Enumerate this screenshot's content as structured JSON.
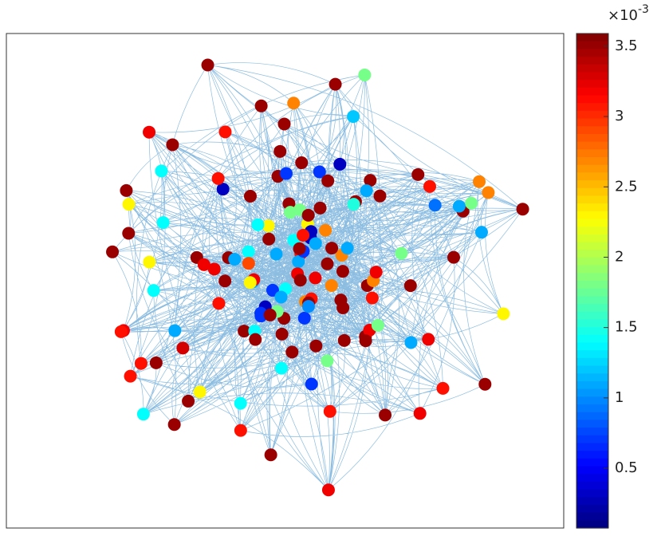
{
  "chart_data": {
    "type": "network",
    "values": [
      3.5,
      3.2,
      1.1,
      3.5,
      0.7,
      3.5,
      2.7,
      3.1,
      1.4,
      3.5,
      1.8,
      3.5,
      3.1,
      0.3,
      3.5,
      2.3,
      3.5,
      1.1,
      3.2,
      3.5,
      1.4,
      3.5,
      2.7,
      0.7,
      3.5,
      3.1,
      1.8,
      3.5,
      3.5,
      1.1,
      3.2,
      2.3,
      3.5,
      1.4,
      3.5,
      0.3,
      3.1,
      3.5,
      2.7,
      1.1,
      3.5,
      3.5,
      1.8,
      3.2,
      0.7,
      3.5,
      1.4,
      3.1,
      3.5,
      2.3,
      3.5,
      1.1,
      3.5,
      3.2,
      2.7,
      0.7,
      3.5,
      1.4,
      3.5,
      3.1,
      1.8,
      3.5,
      0.3,
      3.5,
      1.1,
      3.2,
      3.5,
      2.3,
      3.5,
      1.4,
      3.1,
      3.5,
      2.7,
      0.7,
      3.5,
      1.1,
      3.5,
      3.2,
      1.8,
      3.5,
      1.4,
      3.1,
      3.5,
      2.3,
      0.3,
      3.5,
      1.1,
      3.5,
      3.2,
      2.7,
      3.5,
      0.7,
      3.5,
      1.4,
      3.1,
      1.8,
      3.5,
      1.1,
      3.5,
      3.2,
      2.3,
      3.5,
      1.4,
      3.5,
      0.7,
      3.1,
      3.5,
      2.7,
      1.1,
      3.5,
      3.2,
      1.8,
      3.5,
      0.3,
      3.5,
      1.4,
      3.1,
      3.5,
      1.1,
      2.3,
      3.5,
      3.2,
      0.7,
      3.5,
      2.7,
      1.4,
      3.5,
      3.1,
      1.1,
      3.5,
      1.8,
      3.5,
      3.2,
      0.9,
      3.5,
      3.1,
      1.5,
      3.3,
      1.0,
      3.5,
      2.9,
      1.2,
      3.5,
      3.1
    ],
    "colorbar": {
      "colormap": "jet",
      "clim": [
        0.075,
        3.59
      ],
      "ticks": [
        0.5,
        1,
        1.5,
        2,
        2.5,
        3,
        3.5
      ],
      "multiplier": "×10",
      "exponent": "-3"
    },
    "edge_color": "#2e86c8"
  }
}
